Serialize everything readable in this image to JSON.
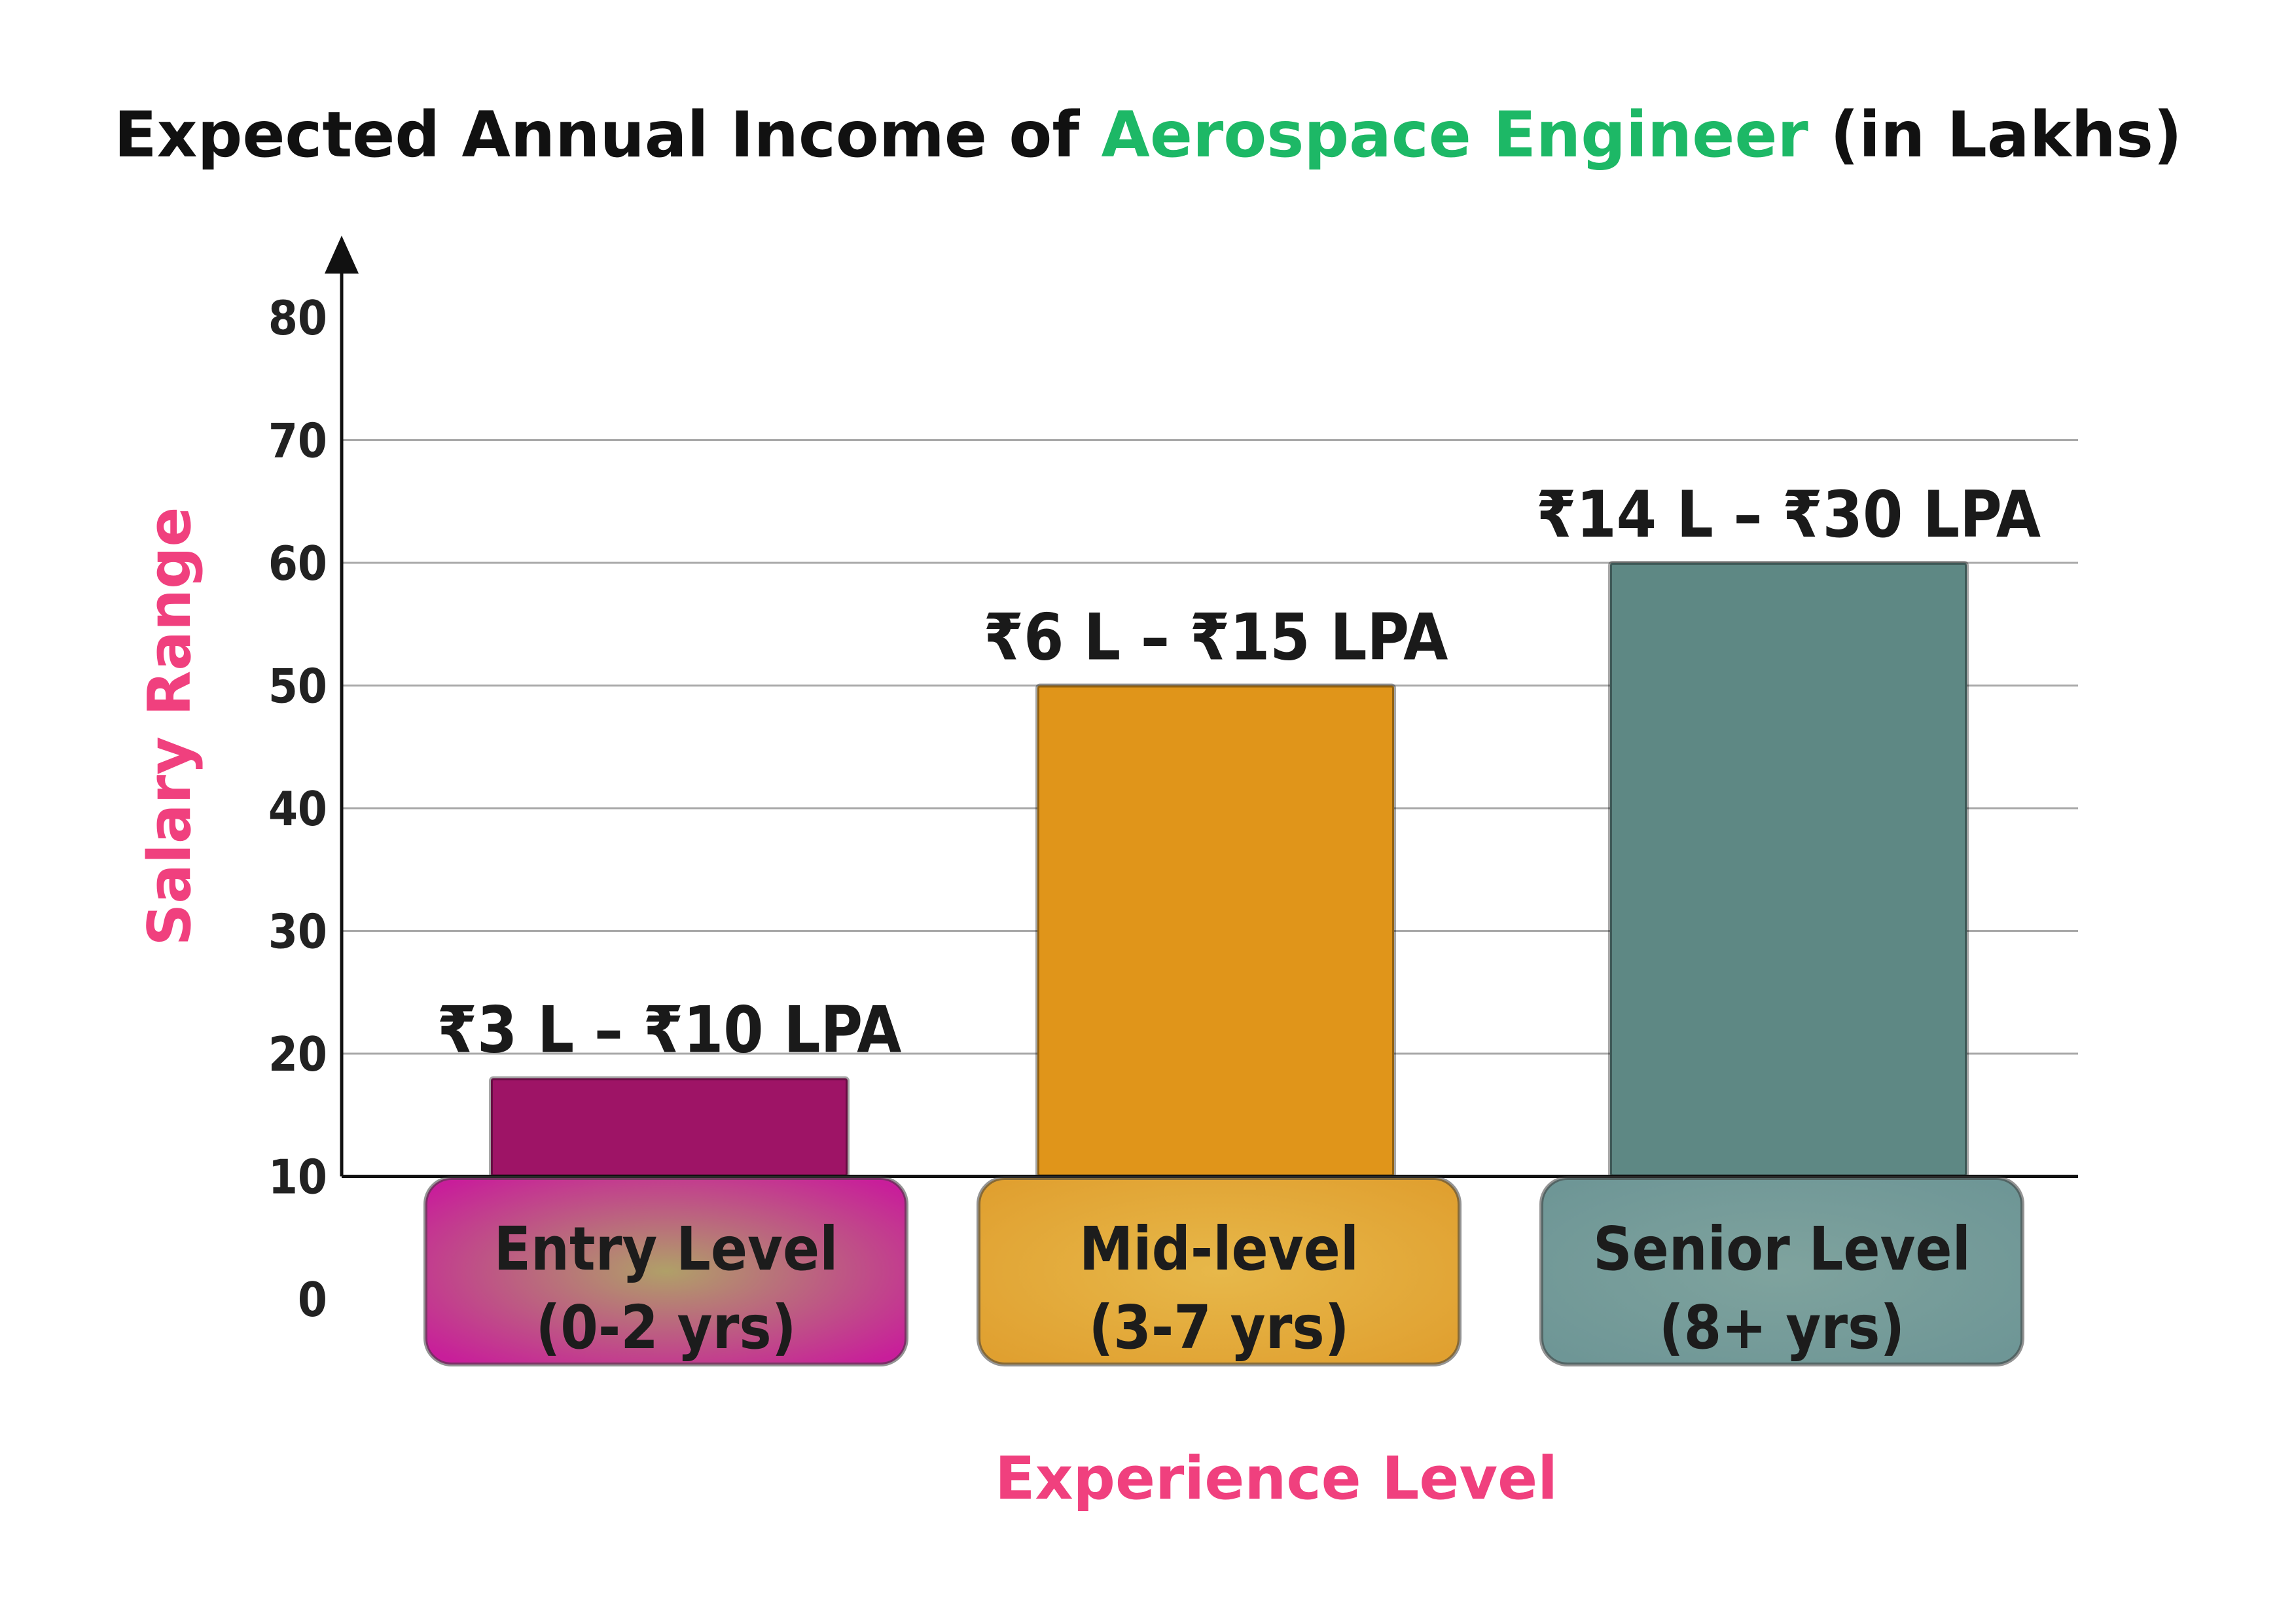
{
  "title": {
    "prefix": "Expected Annual Income of ",
    "highlight": "Aerospace Engineer",
    "suffix": " (in Lakhs)"
  },
  "colors": {
    "title_highlight": "#1DB866",
    "axis_label": "#F0407E",
    "grid": "#a8a8a8",
    "axis": "#111111"
  },
  "chart_data": {
    "type": "bar",
    "title": "Expected Annual Income of Aerospace Engineer (in Lakhs)",
    "xlabel": "Experience Level",
    "ylabel": "Salary Range",
    "ylim": [
      0,
      80
    ],
    "yticks": [
      "0",
      "10",
      "20",
      "30",
      "40",
      "50",
      "60",
      "70",
      "80"
    ],
    "grid": true,
    "categories": [
      {
        "line1": "Entry Level",
        "line2": "(0-2 yrs)"
      },
      {
        "line1": "Mid-level",
        "line2": "(3-7 yrs)"
      },
      {
        "line1": "Senior Level",
        "line2": "(8+ yrs)"
      }
    ],
    "values": [
      18,
      50,
      60
    ],
    "labels": [
      "₹3 L – ₹10 LPA",
      "₹6 L – ₹15 LPA",
      "₹14 L – ₹30 LPA"
    ],
    "bar_colors": [
      "#9E1466",
      "#E0951A",
      "#5E8884"
    ],
    "box_colors": [
      "#C81E9A",
      "#E0A030",
      "#6E9696"
    ]
  }
}
